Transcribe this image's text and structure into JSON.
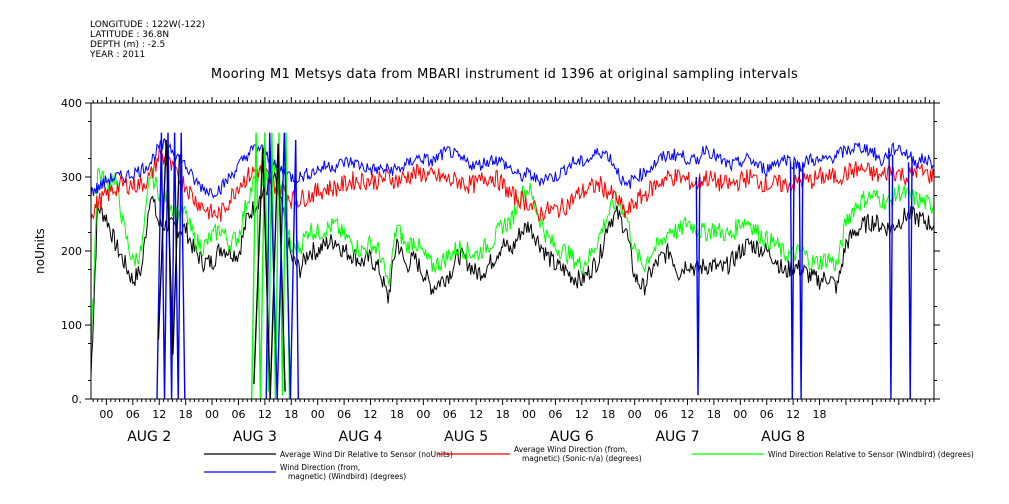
{
  "metadata": {
    "longitude": "LONGITUDE : 122W(-122)",
    "latitude": "LATITUDE : 36.8N",
    "depth": "DEPTH (m) : -2.5",
    "year": "YEAR : 2011"
  },
  "chart_data": {
    "type": "line",
    "title": "Mooring M1 Metsys data from MBARI instrument id 1396 at original sampling intervals",
    "ylabel": "noUnits",
    "xlabel": "",
    "ylim": [
      0,
      400
    ],
    "yticks": [
      0,
      100,
      200,
      300,
      400
    ],
    "ytick_labels": [
      "0.",
      "100",
      "200",
      "300",
      "400"
    ],
    "xlim_hours": [
      -3.5,
      188
    ],
    "hour_ticks": [
      "00",
      "06",
      "12",
      "18",
      "00",
      "06",
      "12",
      "18",
      "00",
      "06",
      "12",
      "18",
      "00",
      "06",
      "12",
      "18",
      "00",
      "06",
      "12",
      "18",
      "00",
      "06",
      "12",
      "18",
      "00",
      "06",
      "12",
      "18"
    ],
    "day_labels": [
      "AUG  2",
      "AUG  3",
      "AUG  4",
      "AUG  5",
      "AUG  6",
      "AUG  7",
      "AUG  8"
    ],
    "grid": false,
    "legend_position": "bottom",
    "colors": {
      "black": "#000000",
      "red": "#ff0000",
      "green": "#00ff00",
      "blue": "#0000ff"
    },
    "series": [
      {
        "name": "Average Wind Dir Relative to Sensor (noUnits)",
        "color": "#000000",
        "hours": [
          -3.5,
          -2,
          0,
          2,
          4,
          6,
          8,
          10,
          12,
          14,
          16,
          18,
          20,
          22,
          24,
          26,
          28,
          30,
          32,
          34,
          36,
          38,
          40,
          42,
          44,
          46,
          48,
          50,
          52,
          54,
          56,
          58,
          60,
          62,
          64,
          66,
          68,
          70,
          72,
          74,
          76,
          78,
          80,
          82,
          84,
          86,
          88,
          90,
          92,
          94,
          96,
          98,
          100,
          102,
          104,
          106,
          108,
          110,
          112,
          114,
          116,
          118,
          120,
          122,
          124,
          126,
          128,
          130,
          132,
          134,
          136,
          138,
          140,
          142,
          144,
          146,
          148,
          150,
          152,
          154,
          156,
          158,
          160,
          162,
          164,
          166,
          168,
          170,
          172,
          174,
          176,
          178,
          180,
          182,
          184,
          186,
          188
        ],
        "values": [
          30,
          260,
          245,
          210,
          185,
          160,
          175,
          280,
          235,
          235,
          230,
          230,
          200,
          185,
          185,
          205,
          200,
          195,
          245,
          265,
          280,
          300,
          255,
          190,
          175,
          200,
          200,
          210,
          215,
          200,
          195,
          185,
          190,
          175,
          135,
          215,
          180,
          190,
          170,
          150,
          160,
          170,
          195,
          185,
          170,
          175,
          190,
          210,
          200,
          225,
          235,
          215,
          195,
          180,
          175,
          165,
          160,
          175,
          190,
          240,
          250,
          230,
          165,
          150,
          175,
          190,
          200,
          170,
          185,
          175,
          180,
          180,
          175,
          185,
          200,
          210,
          205,
          200,
          190,
          170,
          180,
          175,
          165,
          160,
          165,
          150,
          210,
          225,
          235,
          240,
          235,
          230,
          240,
          250,
          245,
          240,
          235
        ]
      },
      {
        "name": "Average Wind Direction (from, magnetic) (Sonic-n/a) (degrees)",
        "color": "#ff0000",
        "hours": [
          -3.5,
          -2,
          0,
          2,
          4,
          6,
          8,
          10,
          12,
          14,
          16,
          18,
          20,
          22,
          24,
          26,
          28,
          30,
          32,
          34,
          36,
          38,
          40,
          42,
          44,
          46,
          48,
          50,
          52,
          54,
          56,
          58,
          60,
          62,
          64,
          66,
          68,
          70,
          72,
          74,
          76,
          78,
          80,
          82,
          84,
          86,
          88,
          90,
          92,
          94,
          96,
          98,
          100,
          102,
          104,
          106,
          108,
          110,
          112,
          114,
          116,
          118,
          120,
          122,
          124,
          126,
          128,
          130,
          132,
          134,
          136,
          138,
          140,
          142,
          144,
          146,
          148,
          150,
          152,
          154,
          156,
          158,
          160,
          162,
          164,
          166,
          168,
          170,
          172,
          174,
          176,
          178,
          180,
          182,
          184,
          186,
          188
        ],
        "values": [
          250,
          265,
          275,
          285,
          290,
          290,
          290,
          300,
          330,
          320,
          300,
          290,
          270,
          260,
          250,
          250,
          270,
          290,
          300,
          310,
          305,
          290,
          285,
          270,
          270,
          275,
          280,
          285,
          285,
          290,
          295,
          295,
          295,
          295,
          300,
          295,
          300,
          305,
          305,
          300,
          300,
          295,
          295,
          290,
          290,
          300,
          300,
          290,
          275,
          270,
          265,
          250,
          255,
          255,
          260,
          270,
          280,
          285,
          290,
          280,
          270,
          250,
          265,
          275,
          285,
          295,
          300,
          300,
          295,
          290,
          300,
          295,
          290,
          290,
          295,
          300,
          295,
          290,
          290,
          290,
          290,
          295,
          295,
          300,
          300,
          300,
          305,
          310,
          310,
          305,
          300,
          310,
          305,
          300,
          310,
          305,
          300
        ]
      },
      {
        "name": "Wind Direction Relative to Sensor (Windbird) (degrees)",
        "color": "#00ff00",
        "hours": [
          -3.5,
          -2,
          0,
          2,
          4,
          6,
          8,
          10,
          12,
          14,
          16,
          18,
          20,
          22,
          24,
          26,
          28,
          30,
          32,
          34,
          36,
          38,
          40,
          42,
          44,
          46,
          48,
          50,
          52,
          54,
          56,
          58,
          60,
          62,
          64,
          66,
          68,
          70,
          72,
          74,
          76,
          78,
          80,
          82,
          84,
          86,
          88,
          90,
          92,
          94,
          96,
          98,
          100,
          102,
          104,
          106,
          108,
          110,
          112,
          114,
          116,
          118,
          120,
          122,
          124,
          126,
          128,
          130,
          132,
          134,
          136,
          138,
          140,
          142,
          144,
          146,
          148,
          150,
          152,
          154,
          156,
          158,
          160,
          162,
          164,
          166,
          168,
          170,
          172,
          174,
          176,
          178,
          180,
          182,
          184,
          186,
          188
        ],
        "values": [
          55,
          310,
          290,
          300,
          230,
          185,
          200,
          305,
          280,
          270,
          250,
          250,
          215,
          205,
          220,
          230,
          210,
          220,
          270,
          300,
          300,
          320,
          270,
          200,
          205,
          230,
          225,
          230,
          235,
          220,
          210,
          200,
          210,
          200,
          155,
          235,
          205,
          215,
          195,
          180,
          185,
          195,
          205,
          200,
          195,
          205,
          215,
          235,
          240,
          275,
          285,
          250,
          220,
          205,
          200,
          190,
          180,
          195,
          220,
          250,
          270,
          250,
          200,
          180,
          200,
          210,
          230,
          225,
          240,
          230,
          225,
          230,
          225,
          220,
          240,
          240,
          225,
          215,
          210,
          195,
          195,
          200,
          185,
          185,
          190,
          180,
          240,
          260,
          270,
          275,
          270,
          265,
          280,
          275,
          270,
          265,
          260
        ]
      },
      {
        "name": "Wind Direction (from, magnetic) (Windbird) (degrees)",
        "color": "#0000ff",
        "hours": [
          -3.5,
          -2,
          0,
          2,
          4,
          6,
          8,
          10,
          12,
          14,
          16,
          18,
          20,
          22,
          24,
          26,
          28,
          30,
          32,
          34,
          36,
          38,
          40,
          42,
          44,
          46,
          48,
          50,
          52,
          54,
          56,
          58,
          60,
          62,
          64,
          66,
          68,
          70,
          72,
          74,
          76,
          78,
          80,
          82,
          84,
          86,
          88,
          90,
          92,
          94,
          96,
          98,
          100,
          102,
          104,
          106,
          108,
          110,
          112,
          114,
          116,
          118,
          120,
          122,
          124,
          126,
          128,
          130,
          132,
          134,
          136,
          138,
          140,
          142,
          144,
          146,
          148,
          150,
          152,
          154,
          156,
          158,
          160,
          162,
          164,
          166,
          168,
          170,
          172,
          174,
          176,
          178,
          180,
          182,
          184,
          186,
          188
        ],
        "values": [
          280,
          285,
          295,
          300,
          300,
          305,
          310,
          320,
          340,
          345,
          330,
          315,
          295,
          285,
          280,
          285,
          300,
          315,
          330,
          340,
          335,
          315,
          310,
          300,
          300,
          305,
          310,
          315,
          315,
          320,
          320,
          315,
          310,
          310,
          310,
          310,
          315,
          325,
          325,
          320,
          330,
          335,
          325,
          320,
          315,
          320,
          325,
          320,
          310,
          300,
          305,
          295,
          300,
          300,
          310,
          320,
          320,
          325,
          335,
          330,
          310,
          285,
          300,
          305,
          315,
          325,
          330,
          330,
          325,
          320,
          340,
          330,
          320,
          315,
          320,
          325,
          315,
          310,
          320,
          325,
          320,
          315,
          325,
          320,
          325,
          330,
          335,
          340,
          340,
          335,
          320,
          335,
          340,
          330,
          320,
          325,
          315
        ]
      }
    ],
    "spikes": [
      {
        "series": 3,
        "hours": [
          11.5,
          12.5,
          13.2,
          14.0,
          14.8,
          15.5,
          16.3,
          17.0,
          17.8
        ],
        "values": [
          0,
          360,
          0,
          360,
          0,
          360,
          0,
          360,
          0
        ]
      },
      {
        "series": 0,
        "hours": [
          11.8,
          13.6,
          15.1,
          16.6
        ],
        "values": [
          80,
          350,
          60,
          330
        ]
      },
      {
        "series": 2,
        "hours": [
          33,
          34,
          35,
          36,
          36.8,
          37.6,
          38.4,
          39.2,
          40.0,
          40.8,
          41.6
        ],
        "values": [
          0,
          360,
          0,
          360,
          10,
          360,
          0,
          360,
          5,
          360,
          0
        ]
      },
      {
        "series": 0,
        "hours": [
          33.5,
          35.5,
          37.2,
          39.0,
          40.6
        ],
        "values": [
          20,
          340,
          0,
          345,
          10
        ]
      },
      {
        "series": 3,
        "hours": [
          36.3,
          37.1,
          38.8,
          40.4,
          41.8,
          43.0,
          43.6
        ],
        "values": [
          0,
          360,
          0,
          360,
          0,
          350,
          0
        ]
      },
      {
        "series": 3,
        "hours": [
          134.0,
          134.4,
          134.8
        ],
        "values": [
          300,
          5,
          300
        ]
      },
      {
        "series": 3,
        "hours": [
          155.4,
          155.8,
          156.2
        ],
        "values": [
          320,
          0,
          320
        ]
      },
      {
        "series": 3,
        "hours": [
          157.4,
          157.8,
          158.2
        ],
        "values": [
          320,
          0,
          320
        ]
      },
      {
        "series": 3,
        "hours": [
          177.8,
          178.2,
          178.6
        ],
        "values": [
          330,
          0,
          330
        ]
      },
      {
        "series": 3,
        "hours": [
          182.2,
          182.6,
          183.0
        ],
        "values": [
          320,
          0,
          320
        ]
      }
    ]
  }
}
